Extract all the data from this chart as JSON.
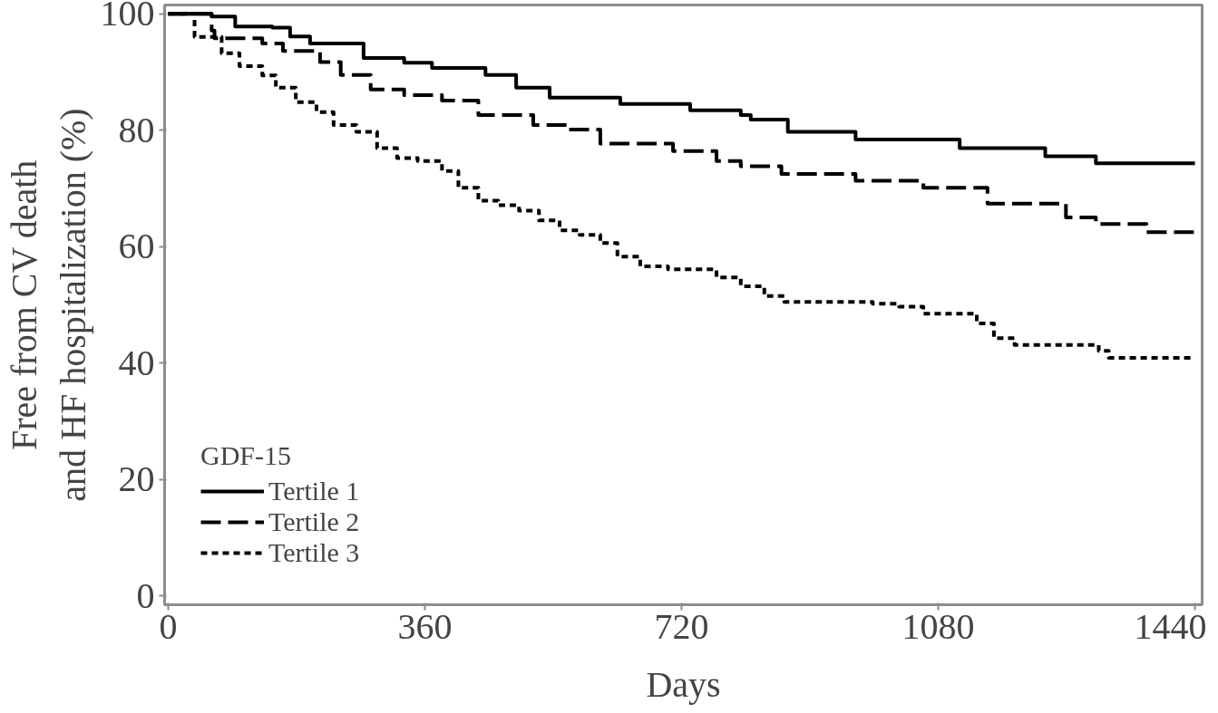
{
  "chart_data": {
    "type": "step",
    "xlabel": "Days",
    "ylabel": "Free from CV death\nand HF hospitalization (%)",
    "legend_title": "GDF-15",
    "legend": "bottom left",
    "grid": false,
    "xlim": [
      -5,
      1450
    ],
    "ylim": [
      -1.5,
      101.5
    ],
    "xticks": [
      0,
      360,
      720,
      1080,
      1440
    ],
    "yticks": [
      0,
      20,
      40,
      60,
      80,
      100
    ],
    "series": [
      {
        "name": "Tertile 1",
        "color": "#000000",
        "line_style": "solid",
        "x": [
          0,
          61,
          94,
          146,
          171,
          199,
          274,
          331,
          370,
          445,
          488,
          535,
          634,
          732,
          803,
          817,
          869,
          964,
          1110,
          1230,
          1301,
          1440
        ],
        "values": [
          100,
          99.5,
          97.8,
          97.6,
          96.1,
          94.9,
          92.4,
          91.6,
          90.7,
          89.5,
          87.3,
          85.6,
          84.5,
          83.4,
          82.6,
          81.8,
          79.7,
          78.4,
          76.9,
          75.5,
          74.3,
          74.3
        ]
      },
      {
        "name": "Tertile 2",
        "color": "#000000",
        "line_style": "dashed",
        "x": [
          0,
          61,
          65,
          132,
          161,
          213,
          242,
          284,
          331,
          384,
          435,
          512,
          559,
          606,
          708,
          769,
          803,
          860,
          964,
          1059,
          1149,
          1259,
          1301,
          1372,
          1440
        ],
        "values": [
          100,
          97.1,
          95.8,
          94.9,
          93.6,
          91.7,
          89.5,
          87,
          86,
          85.1,
          82.6,
          80.9,
          80.1,
          77.7,
          76.4,
          74.7,
          73.8,
          72.5,
          71.3,
          70.1,
          67.4,
          65,
          63.9,
          62.5,
          62.5
        ]
      },
      {
        "name": "Tertile 3",
        "color": "#000000",
        "line_style": "dotted",
        "x": [
          0,
          37,
          75,
          100,
          132,
          151,
          179,
          208,
          232,
          264,
          293,
          321,
          350,
          384,
          407,
          435,
          463,
          492,
          520,
          549,
          577,
          606,
          630,
          662,
          701,
          769,
          803,
          836,
          864,
          988,
          1025,
          1059,
          1134,
          1158,
          1187,
          1305,
          1319,
          1440
        ],
        "values": [
          100,
          96,
          93.2,
          91,
          89.4,
          87.3,
          84.8,
          83.1,
          80.9,
          79.7,
          76.9,
          75.2,
          74.7,
          73,
          70.1,
          67.9,
          67.1,
          66.2,
          64.5,
          62.8,
          62,
          60.6,
          58.3,
          56.6,
          56.1,
          54.7,
          53.2,
          51.5,
          50.5,
          50.2,
          49.7,
          48.5,
          46.8,
          44.3,
          43.1,
          42.1,
          40.9,
          40.9
        ]
      }
    ]
  }
}
